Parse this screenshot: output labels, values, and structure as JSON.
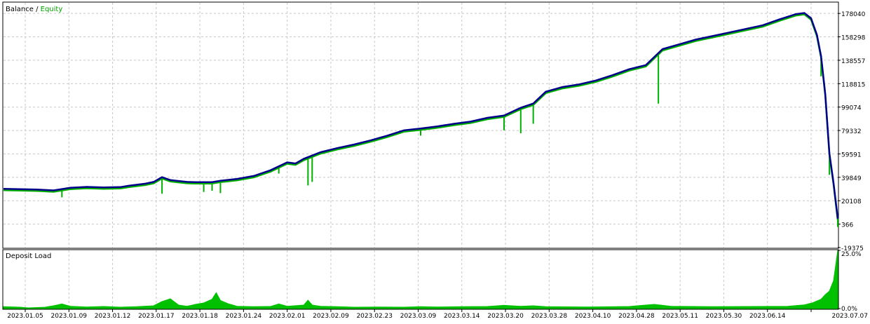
{
  "main_panel": {
    "legend_balance": "Balance",
    "legend_separator": " / ",
    "legend_equity": "Equity"
  },
  "sub_panel": {
    "label": "Deposit Load"
  },
  "colors": {
    "balance": "#00008b",
    "equity": "#00b000",
    "deposit_load": "#00c000",
    "grid": "#c8c8c8",
    "frame": "#000000"
  },
  "chart_data": [
    {
      "type": "line",
      "series": [
        {
          "name": "Balance",
          "color": "#00008b"
        },
        {
          "name": "Equity",
          "color": "#00b000"
        }
      ],
      "y_ticks": [
        "178040",
        "158298",
        "138557",
        "118815",
        "99074",
        "79332",
        "59591",
        "39849",
        "20108",
        "366",
        "-19375"
      ],
      "ylim": [
        -19375,
        187000
      ],
      "x_ticks": [
        "2023.01.05",
        "2023.01.09",
        "2023.01.12",
        "2023.01.17",
        "2023.01.18",
        "2023.01.24",
        "2023.02.01",
        "2023.02.09",
        "2023.02.23",
        "2023.03.09",
        "2023.03.14",
        "2023.03.20",
        "2023.03.28",
        "2023.04.10",
        "2023.04.28",
        "2023.05.11",
        "2023.05.30",
        "2023.06.14",
        "2023.07.07"
      ],
      "points": [
        [
          0,
          30200
        ],
        [
          0.04,
          29500
        ],
        [
          0.06,
          28800
        ],
        [
          0.08,
          31000
        ],
        [
          0.1,
          31800
        ],
        [
          0.12,
          31300
        ],
        [
          0.14,
          31600
        ],
        [
          0.15,
          32700
        ],
        [
          0.17,
          34500
        ],
        [
          0.18,
          36000
        ],
        [
          0.19,
          40000
        ],
        [
          0.2,
          37500
        ],
        [
          0.22,
          36000
        ],
        [
          0.23,
          35800
        ],
        [
          0.25,
          35800
        ],
        [
          0.26,
          37000
        ],
        [
          0.28,
          38500
        ],
        [
          0.3,
          41000
        ],
        [
          0.32,
          45800
        ],
        [
          0.34,
          52500
        ],
        [
          0.35,
          51500
        ],
        [
          0.36,
          55500
        ],
        [
          0.38,
          61000
        ],
        [
          0.4,
          64500
        ],
        [
          0.42,
          67500
        ],
        [
          0.44,
          71000
        ],
        [
          0.46,
          75000
        ],
        [
          0.48,
          79500
        ],
        [
          0.5,
          81000
        ],
        [
          0.52,
          82800
        ],
        [
          0.54,
          85000
        ],
        [
          0.56,
          86800
        ],
        [
          0.58,
          90000
        ],
        [
          0.6,
          92000
        ],
        [
          0.62,
          98500
        ],
        [
          0.635,
          102000
        ],
        [
          0.65,
          112000
        ],
        [
          0.67,
          116000
        ],
        [
          0.69,
          118200
        ],
        [
          0.71,
          121500
        ],
        [
          0.73,
          126000
        ],
        [
          0.75,
          131000
        ],
        [
          0.77,
          134500
        ],
        [
          0.79,
          148000
        ],
        [
          0.81,
          152000
        ],
        [
          0.83,
          156000
        ],
        [
          0.85,
          159000
        ],
        [
          0.87,
          162000
        ],
        [
          0.89,
          165000
        ],
        [
          0.91,
          168000
        ],
        [
          0.93,
          173000
        ],
        [
          0.95,
          177500
        ],
        [
          0.96,
          178400
        ],
        [
          0.968,
          174000
        ],
        [
          0.975,
          160000
        ],
        [
          0.98,
          142000
        ],
        [
          0.985,
          110000
        ],
        [
          0.99,
          60000
        ],
        [
          0.995,
          35000
        ],
        [
          1.0,
          5000
        ]
      ],
      "equity_dips": [
        [
          0.07,
          23000
        ],
        [
          0.19,
          26000
        ],
        [
          0.24,
          27500
        ],
        [
          0.25,
          28500
        ],
        [
          0.26,
          26500
        ],
        [
          0.33,
          43000
        ],
        [
          0.365,
          33000
        ],
        [
          0.37,
          36000
        ],
        [
          0.5,
          75000
        ],
        [
          0.6,
          79500
        ],
        [
          0.62,
          77000
        ],
        [
          0.635,
          85000
        ],
        [
          0.785,
          102000
        ],
        [
          0.98,
          125000
        ],
        [
          0.99,
          42000
        ],
        [
          1.0,
          -2000
        ]
      ]
    },
    {
      "type": "area",
      "name": "Deposit Load",
      "y_ticks": [
        "25.0%",
        "0.0%"
      ],
      "ylim": [
        0,
        25
      ],
      "points": [
        [
          0,
          0.8
        ],
        [
          0.02,
          0.6
        ],
        [
          0.03,
          0.3
        ],
        [
          0.05,
          0.6
        ],
        [
          0.06,
          1.2
        ],
        [
          0.07,
          2.0
        ],
        [
          0.08,
          1.0
        ],
        [
          0.1,
          0.7
        ],
        [
          0.12,
          0.9
        ],
        [
          0.14,
          0.6
        ],
        [
          0.16,
          0.8
        ],
        [
          0.18,
          1.2
        ],
        [
          0.19,
          3.0
        ],
        [
          0.2,
          4.2
        ],
        [
          0.21,
          1.5
        ],
        [
          0.22,
          1.0
        ],
        [
          0.23,
          1.8
        ],
        [
          0.24,
          2.4
        ],
        [
          0.25,
          4.0
        ],
        [
          0.255,
          6.8
        ],
        [
          0.26,
          3.5
        ],
        [
          0.27,
          2.0
        ],
        [
          0.28,
          1.0
        ],
        [
          0.3,
          0.8
        ],
        [
          0.32,
          0.9
        ],
        [
          0.33,
          2.0
        ],
        [
          0.34,
          1.0
        ],
        [
          0.36,
          1.5
        ],
        [
          0.365,
          3.6
        ],
        [
          0.37,
          1.5
        ],
        [
          0.38,
          1.0
        ],
        [
          0.4,
          0.8
        ],
        [
          0.42,
          0.6
        ],
        [
          0.45,
          0.7
        ],
        [
          0.48,
          0.6
        ],
        [
          0.5,
          0.8
        ],
        [
          0.52,
          0.7
        ],
        [
          0.55,
          0.8
        ],
        [
          0.58,
          0.9
        ],
        [
          0.6,
          1.4
        ],
        [
          0.62,
          1.0
        ],
        [
          0.635,
          1.2
        ],
        [
          0.65,
          0.8
        ],
        [
          0.7,
          0.7
        ],
        [
          0.75,
          0.9
        ],
        [
          0.78,
          1.8
        ],
        [
          0.8,
          1.0
        ],
        [
          0.85,
          0.8
        ],
        [
          0.9,
          0.9
        ],
        [
          0.94,
          1.0
        ],
        [
          0.96,
          1.6
        ],
        [
          0.97,
          2.5
        ],
        [
          0.98,
          4.0
        ],
        [
          0.985,
          6.0
        ],
        [
          0.99,
          7.5
        ],
        [
          0.995,
          12.0
        ],
        [
          1.0,
          25.0
        ]
      ]
    }
  ]
}
